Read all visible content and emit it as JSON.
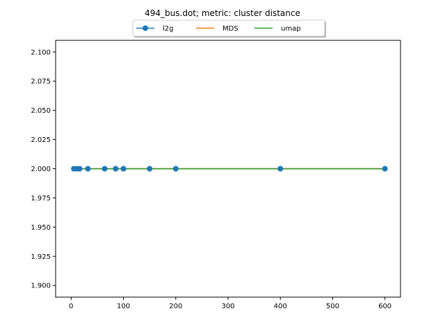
{
  "chart_data": {
    "type": "line",
    "title": "494_bus.dot; metric: cluster distance",
    "xlabel": "",
    "ylabel": "",
    "xlim": [
      -29.75,
      629.75
    ],
    "ylim": [
      1.89,
      2.11
    ],
    "xticks": [
      0,
      100,
      200,
      300,
      400,
      500,
      600
    ],
    "yticks": [
      1.9,
      1.925,
      1.95,
      1.975,
      2.0,
      2.025,
      2.05,
      2.075,
      2.1
    ],
    "xtick_labels": [
      "0",
      "100",
      "200",
      "300",
      "400",
      "500",
      "600"
    ],
    "ytick_labels": [
      "1.900",
      "1.925",
      "1.950",
      "1.975",
      "2.000",
      "2.025",
      "2.050",
      "2.075",
      "2.100"
    ],
    "grid": false,
    "legend_position": "top-center",
    "series": [
      {
        "name": "l2g",
        "color": "#1f77b4",
        "marker": "circle",
        "x": [
          5,
          10,
          16,
          32,
          64,
          85,
          100,
          150,
          200,
          400,
          600
        ],
        "y": [
          2,
          2,
          2,
          2,
          2,
          2,
          2,
          2,
          2,
          2,
          2
        ]
      },
      {
        "name": "MDS",
        "color": "#ff7f0e",
        "marker": "none",
        "x": [
          5,
          600
        ],
        "y": [
          2,
          2
        ]
      },
      {
        "name": "umap",
        "color": "#2ca02c",
        "marker": "none",
        "x": [
          5,
          600
        ],
        "y": [
          2,
          2
        ]
      }
    ]
  }
}
